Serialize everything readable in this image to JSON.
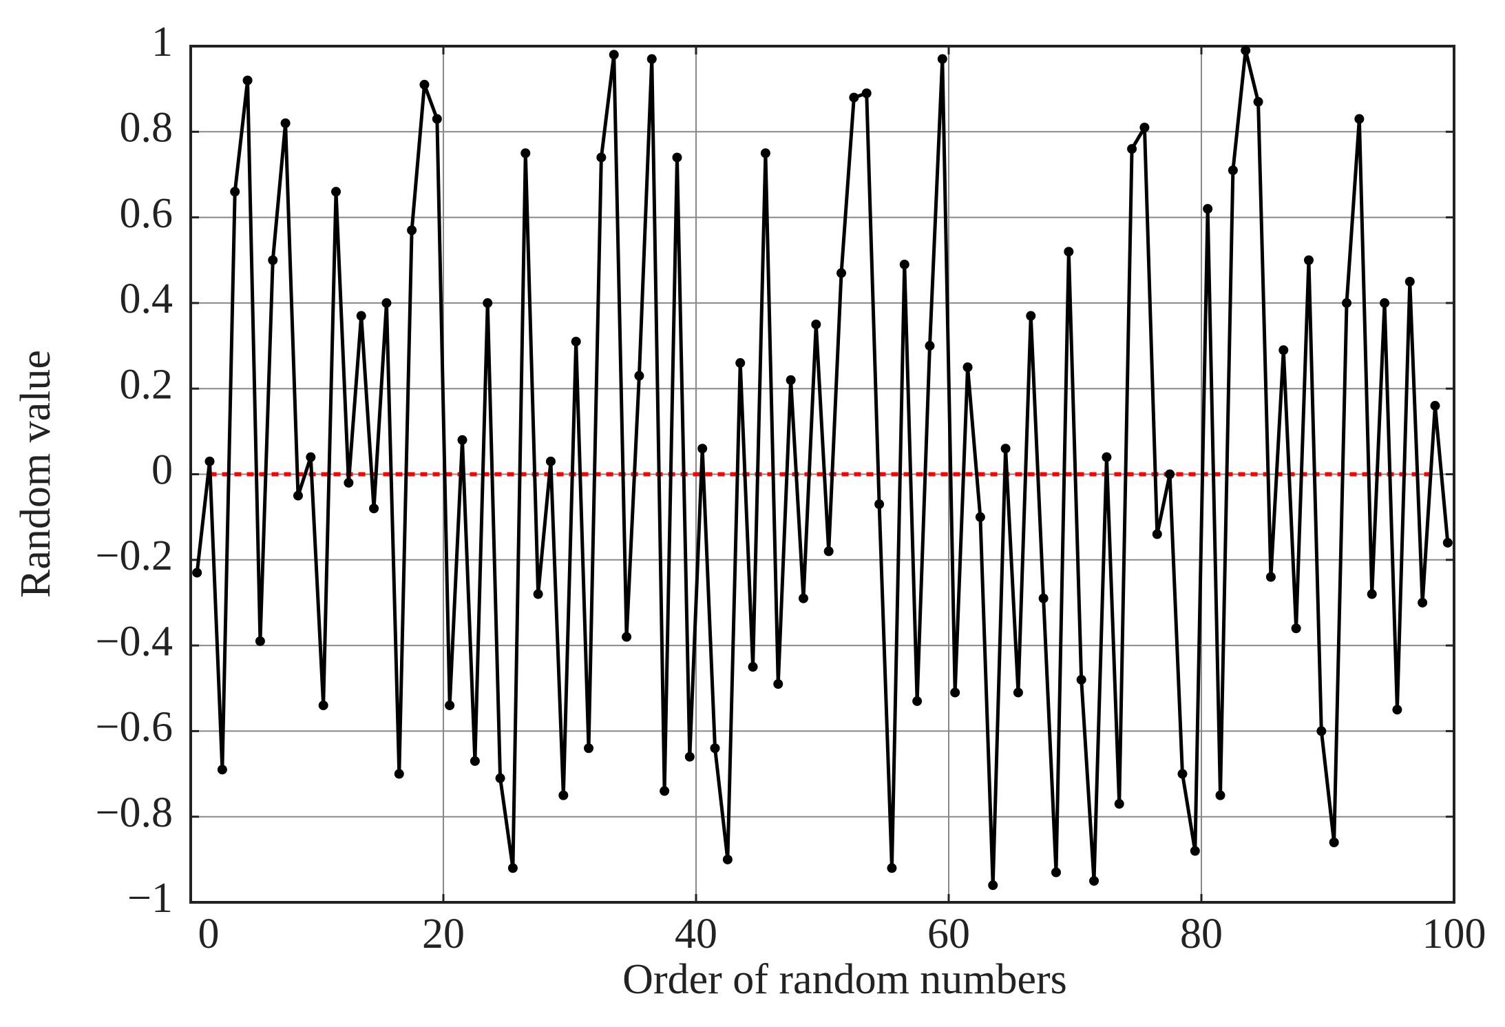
{
  "chart_data": {
    "type": "line",
    "xlabel": "Order of random numbers",
    "ylabel": "Random value",
    "x": [
      0.5,
      1.5,
      2.5,
      3.5,
      4.5,
      5.5,
      6.5,
      7.5,
      8.5,
      9.5,
      10.5,
      11.5,
      12.5,
      13.5,
      14.5,
      15.5,
      16.5,
      17.5,
      18.5,
      19.5,
      20.5,
      21.5,
      22.5,
      23.5,
      24.5,
      25.5,
      26.5,
      27.5,
      28.5,
      29.5,
      30.5,
      31.5,
      32.5,
      33.5,
      34.5,
      35.5,
      36.5,
      37.5,
      38.5,
      39.5,
      40.5,
      41.5,
      42.5,
      43.5,
      44.5,
      45.5,
      46.5,
      47.5,
      48.5,
      49.5,
      50.5,
      51.5,
      52.5,
      53.5,
      54.5,
      55.5,
      56.5,
      57.5,
      58.5,
      59.5,
      60.5,
      61.5,
      62.5,
      63.5,
      64.5,
      65.5,
      66.5,
      67.5,
      68.5,
      69.5,
      70.5,
      71.5,
      72.5,
      73.5,
      74.5,
      75.5,
      76.5,
      77.5,
      78.5,
      79.5,
      80.5,
      81.5,
      82.5,
      83.5,
      84.5,
      85.5,
      86.5,
      87.5,
      88.5,
      89.5,
      90.5,
      91.5,
      92.5,
      93.5,
      94.5,
      95.5,
      96.5,
      97.5,
      98.5,
      99.5
    ],
    "series": [
      {
        "color": "#000000",
        "values": [
          -0.23,
          0.03,
          -0.69,
          0.66,
          0.92,
          -0.39,
          0.5,
          0.82,
          -0.05,
          0.04,
          -0.54,
          0.66,
          -0.02,
          0.37,
          -0.08,
          0.4,
          -0.7,
          0.57,
          0.91,
          0.83,
          -0.54,
          0.08,
          -0.67,
          0.4,
          -0.71,
          -0.92,
          0.75,
          -0.28,
          0.03,
          -0.75,
          0.31,
          -0.64,
          0.74,
          0.98,
          -0.38,
          0.23,
          0.97,
          -0.74,
          0.74,
          -0.66,
          0.06,
          -0.64,
          -0.9,
          0.26,
          -0.45,
          0.75,
          -0.49,
          0.22,
          -0.29,
          0.35,
          -0.18,
          0.47,
          0.88,
          0.89,
          -0.07,
          -0.92,
          0.49,
          -0.53,
          0.3,
          0.97,
          -0.51,
          0.25,
          -0.1,
          -0.96,
          0.06,
          -0.51,
          0.37,
          -0.29,
          -0.93,
          0.52,
          -0.48,
          -0.95,
          0.04,
          -0.77,
          0.76,
          0.81,
          -0.14,
          0.0,
          -0.7,
          -0.88,
          0.62,
          -0.75,
          0.71,
          0.99,
          0.87,
          -0.24,
          0.29,
          -0.36,
          0.5,
          -0.6,
          -0.86,
          0.4,
          0.83,
          -0.28,
          0.4,
          -0.55,
          0.45,
          -0.3,
          0.16,
          -0.16
        ]
      }
    ],
    "reference_line": {
      "value": 0,
      "color": "#ff0000"
    },
    "xlim": [
      0,
      100
    ],
    "xticks": [
      0,
      20,
      40,
      60,
      80,
      100
    ],
    "ylim": [
      -1,
      1
    ],
    "yticks": [
      {
        "value": -1,
        "label": "−1"
      },
      {
        "value": -0.8,
        "label": "−0.8"
      },
      {
        "value": -0.6,
        "label": "−0.6"
      },
      {
        "value": -0.4,
        "label": "−0.4"
      },
      {
        "value": -0.2,
        "label": "−0.2"
      },
      0,
      0.2,
      0.4,
      0.6,
      0.8,
      1
    ],
    "grid": true
  }
}
